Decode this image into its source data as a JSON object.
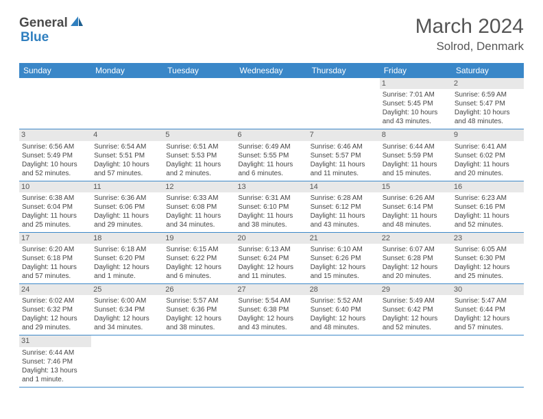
{
  "logo": {
    "text1": "General",
    "text2": "Blue"
  },
  "title": "March 2024",
  "location": "Solrod, Denmark",
  "header_bg": "#3a87c8",
  "header_fg": "#ffffff",
  "daynum_bg": "#e8e8e8",
  "border_color": "#3a87c8",
  "daynames": [
    "Sunday",
    "Monday",
    "Tuesday",
    "Wednesday",
    "Thursday",
    "Friday",
    "Saturday"
  ],
  "weeks": [
    [
      null,
      null,
      null,
      null,
      null,
      {
        "n": "1",
        "sr": "Sunrise: 7:01 AM",
        "ss": "Sunset: 5:45 PM",
        "dl": "Daylight: 10 hours and 43 minutes."
      },
      {
        "n": "2",
        "sr": "Sunrise: 6:59 AM",
        "ss": "Sunset: 5:47 PM",
        "dl": "Daylight: 10 hours and 48 minutes."
      }
    ],
    [
      {
        "n": "3",
        "sr": "Sunrise: 6:56 AM",
        "ss": "Sunset: 5:49 PM",
        "dl": "Daylight: 10 hours and 52 minutes."
      },
      {
        "n": "4",
        "sr": "Sunrise: 6:54 AM",
        "ss": "Sunset: 5:51 PM",
        "dl": "Daylight: 10 hours and 57 minutes."
      },
      {
        "n": "5",
        "sr": "Sunrise: 6:51 AM",
        "ss": "Sunset: 5:53 PM",
        "dl": "Daylight: 11 hours and 2 minutes."
      },
      {
        "n": "6",
        "sr": "Sunrise: 6:49 AM",
        "ss": "Sunset: 5:55 PM",
        "dl": "Daylight: 11 hours and 6 minutes."
      },
      {
        "n": "7",
        "sr": "Sunrise: 6:46 AM",
        "ss": "Sunset: 5:57 PM",
        "dl": "Daylight: 11 hours and 11 minutes."
      },
      {
        "n": "8",
        "sr": "Sunrise: 6:44 AM",
        "ss": "Sunset: 5:59 PM",
        "dl": "Daylight: 11 hours and 15 minutes."
      },
      {
        "n": "9",
        "sr": "Sunrise: 6:41 AM",
        "ss": "Sunset: 6:02 PM",
        "dl": "Daylight: 11 hours and 20 minutes."
      }
    ],
    [
      {
        "n": "10",
        "sr": "Sunrise: 6:38 AM",
        "ss": "Sunset: 6:04 PM",
        "dl": "Daylight: 11 hours and 25 minutes."
      },
      {
        "n": "11",
        "sr": "Sunrise: 6:36 AM",
        "ss": "Sunset: 6:06 PM",
        "dl": "Daylight: 11 hours and 29 minutes."
      },
      {
        "n": "12",
        "sr": "Sunrise: 6:33 AM",
        "ss": "Sunset: 6:08 PM",
        "dl": "Daylight: 11 hours and 34 minutes."
      },
      {
        "n": "13",
        "sr": "Sunrise: 6:31 AM",
        "ss": "Sunset: 6:10 PM",
        "dl": "Daylight: 11 hours and 38 minutes."
      },
      {
        "n": "14",
        "sr": "Sunrise: 6:28 AM",
        "ss": "Sunset: 6:12 PM",
        "dl": "Daylight: 11 hours and 43 minutes."
      },
      {
        "n": "15",
        "sr": "Sunrise: 6:26 AM",
        "ss": "Sunset: 6:14 PM",
        "dl": "Daylight: 11 hours and 48 minutes."
      },
      {
        "n": "16",
        "sr": "Sunrise: 6:23 AM",
        "ss": "Sunset: 6:16 PM",
        "dl": "Daylight: 11 hours and 52 minutes."
      }
    ],
    [
      {
        "n": "17",
        "sr": "Sunrise: 6:20 AM",
        "ss": "Sunset: 6:18 PM",
        "dl": "Daylight: 11 hours and 57 minutes."
      },
      {
        "n": "18",
        "sr": "Sunrise: 6:18 AM",
        "ss": "Sunset: 6:20 PM",
        "dl": "Daylight: 12 hours and 1 minute."
      },
      {
        "n": "19",
        "sr": "Sunrise: 6:15 AM",
        "ss": "Sunset: 6:22 PM",
        "dl": "Daylight: 12 hours and 6 minutes."
      },
      {
        "n": "20",
        "sr": "Sunrise: 6:13 AM",
        "ss": "Sunset: 6:24 PM",
        "dl": "Daylight: 12 hours and 11 minutes."
      },
      {
        "n": "21",
        "sr": "Sunrise: 6:10 AM",
        "ss": "Sunset: 6:26 PM",
        "dl": "Daylight: 12 hours and 15 minutes."
      },
      {
        "n": "22",
        "sr": "Sunrise: 6:07 AM",
        "ss": "Sunset: 6:28 PM",
        "dl": "Daylight: 12 hours and 20 minutes."
      },
      {
        "n": "23",
        "sr": "Sunrise: 6:05 AM",
        "ss": "Sunset: 6:30 PM",
        "dl": "Daylight: 12 hours and 25 minutes."
      }
    ],
    [
      {
        "n": "24",
        "sr": "Sunrise: 6:02 AM",
        "ss": "Sunset: 6:32 PM",
        "dl": "Daylight: 12 hours and 29 minutes."
      },
      {
        "n": "25",
        "sr": "Sunrise: 6:00 AM",
        "ss": "Sunset: 6:34 PM",
        "dl": "Daylight: 12 hours and 34 minutes."
      },
      {
        "n": "26",
        "sr": "Sunrise: 5:57 AM",
        "ss": "Sunset: 6:36 PM",
        "dl": "Daylight: 12 hours and 38 minutes."
      },
      {
        "n": "27",
        "sr": "Sunrise: 5:54 AM",
        "ss": "Sunset: 6:38 PM",
        "dl": "Daylight: 12 hours and 43 minutes."
      },
      {
        "n": "28",
        "sr": "Sunrise: 5:52 AM",
        "ss": "Sunset: 6:40 PM",
        "dl": "Daylight: 12 hours and 48 minutes."
      },
      {
        "n": "29",
        "sr": "Sunrise: 5:49 AM",
        "ss": "Sunset: 6:42 PM",
        "dl": "Daylight: 12 hours and 52 minutes."
      },
      {
        "n": "30",
        "sr": "Sunrise: 5:47 AM",
        "ss": "Sunset: 6:44 PM",
        "dl": "Daylight: 12 hours and 57 minutes."
      }
    ],
    [
      {
        "n": "31",
        "sr": "Sunrise: 6:44 AM",
        "ss": "Sunset: 7:46 PM",
        "dl": "Daylight: 13 hours and 1 minute."
      },
      null,
      null,
      null,
      null,
      null,
      null
    ]
  ]
}
